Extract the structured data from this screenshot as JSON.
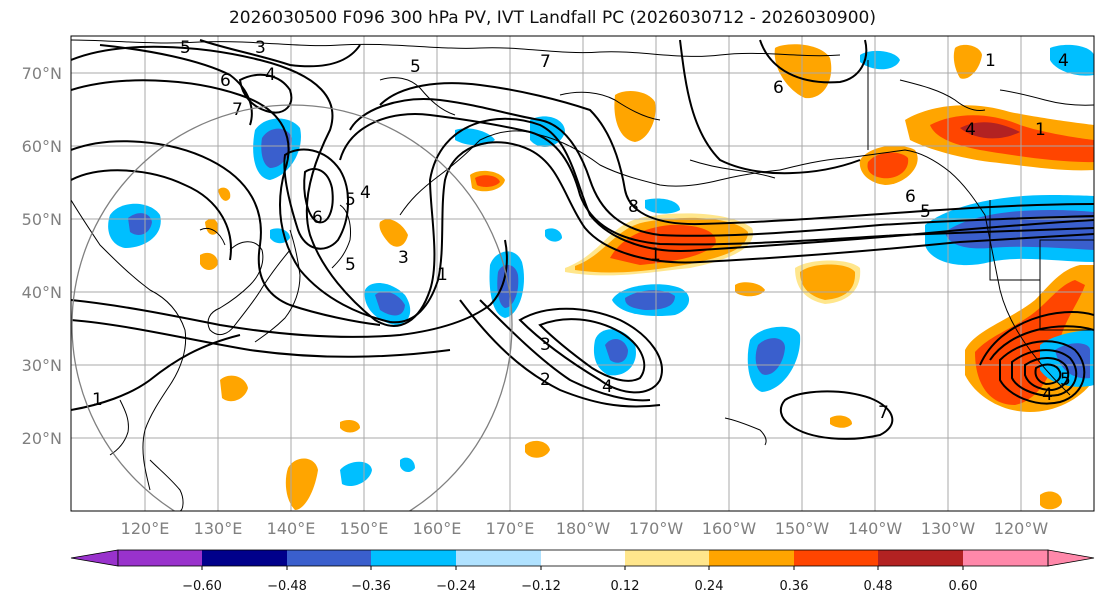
{
  "title": "2026030500 F096 300 hPa PV, IVT Landfall PC (2026030712 - 2026030900)",
  "lat_labels": [
    "70°N",
    "60°N",
    "50°N",
    "40°N",
    "30°N",
    "20°N"
  ],
  "lon_labels": [
    "120°E",
    "130°E",
    "140°E",
    "150°E",
    "160°E",
    "170°E",
    "180°W",
    "170°W",
    "160°W",
    "150°W",
    "140°W",
    "130°W",
    "120°W"
  ],
  "colorbar": {
    "ticks": [
      "−0.60",
      "−0.48",
      "−0.36",
      "−0.24",
      "−0.12",
      "0.12",
      "0.24",
      "0.36",
      "0.48",
      "0.60"
    ],
    "colors": [
      "#9932cc",
      "#00008b",
      "#3a5fcd",
      "#00bfff",
      "#b0e2ff",
      "#ffffff",
      "#ffe68c",
      "#ffa500",
      "#ff4500",
      "#b22222",
      "#ff88aa"
    ]
  },
  "contour_labels": [
    "5",
    "3",
    "6",
    "4",
    "7",
    "5",
    "4",
    "1",
    "7",
    "6",
    "6",
    "5",
    "4",
    "1",
    "1",
    "8",
    "5",
    "3",
    "2",
    "4",
    "1",
    "6",
    "5",
    "4",
    "3",
    "5",
    "4",
    "1",
    "7"
  ],
  "shading_colors": {
    "light_blue": "#00bfff",
    "mid_blue": "#3a5fcd",
    "dark_blue": "#00008b",
    "yellow": "#ffe68c",
    "orange": "#ffa500",
    "red_orange": "#ff4500",
    "dark_red": "#b22222"
  }
}
